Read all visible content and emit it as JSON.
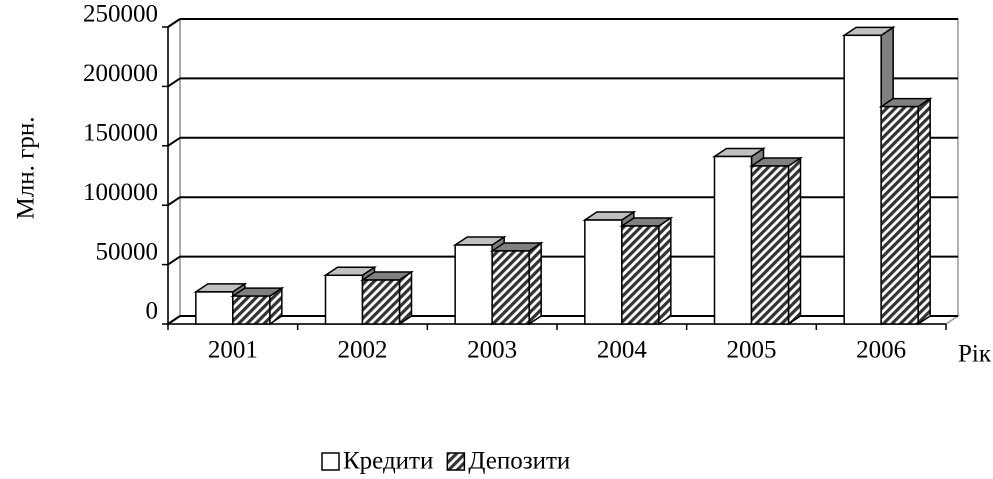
{
  "chart_data": {
    "type": "bar3d",
    "y_label": "Млн. грн.",
    "x_label": "Рік",
    "categories": [
      "2001",
      "2002",
      "2003",
      "2004",
      "2005",
      "2006"
    ],
    "series": [
      {
        "name": "Кредити",
        "color": "#ffffff",
        "values": [
          27000,
          41000,
          66500,
          87500,
          141000,
          243000
        ]
      },
      {
        "name": "Депозити",
        "color": "#808080",
        "values": [
          23500,
          37000,
          61500,
          82500,
          133000,
          183000
        ]
      }
    ],
    "ylim": [
      0,
      250000
    ],
    "yticks": [
      0,
      50000,
      100000,
      150000,
      200000,
      250000
    ],
    "grid": true
  }
}
